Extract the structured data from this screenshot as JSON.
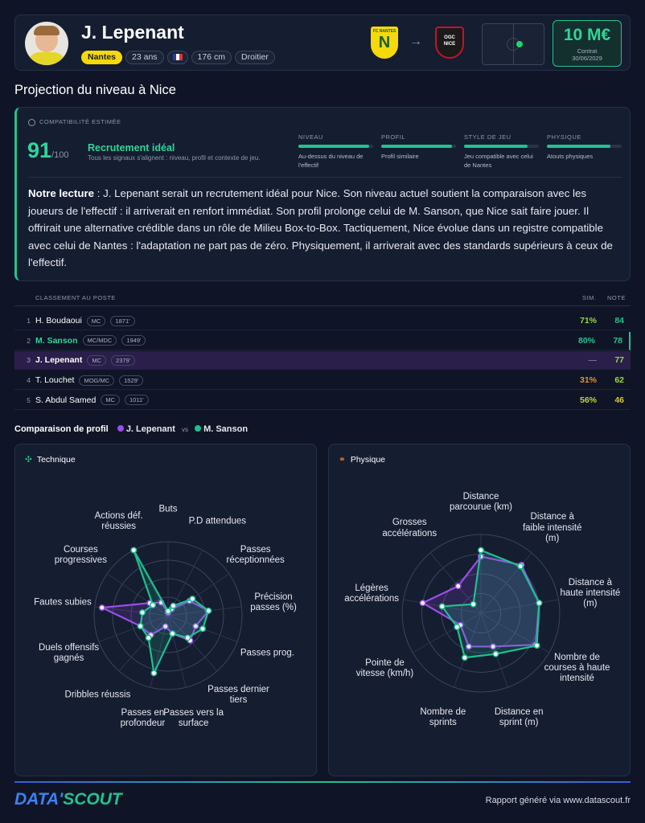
{
  "header": {
    "name": "J. Lepenant",
    "club": "Nantes",
    "age": "23 ans",
    "height": "176 cm",
    "foot": "Droitier",
    "from_logo": "FC NANTES",
    "to_logo": "OGC NICE",
    "value": "10 M€",
    "contract_label": "Contrat",
    "contract_date": "30/06/2029"
  },
  "section_title": "Projection du niveau à Nice",
  "compat": {
    "title": "COMPATIBILITÉ ESTIMÉE",
    "score": "91",
    "score_max": "/100",
    "verdict": "Recrutement idéal",
    "verdict_text": "Tous les signaux s'alignent : niveau, profil et contexte de jeu.",
    "bars": [
      {
        "label": "NIVEAU",
        "text": "Au-dessus du niveau de l'effectif",
        "value": 95
      },
      {
        "label": "PROFIL",
        "text": "Profil similaire",
        "value": 95
      },
      {
        "label": "STYLE DE JEU",
        "text": "Jeu compatible avec celui de Nantes",
        "value": 85
      },
      {
        "label": "PHYSIQUE",
        "text": "Atouts physiques",
        "value": 85
      }
    ],
    "reading_label": "Notre lecture",
    "reading": " : J. Lepenant serait un recrutement idéal pour Nice. Son niveau actuel soutient la comparaison avec les joueurs de l'effectif : il arriverait en renfort immédiat. Son profil prolonge celui de M. Sanson, que Nice sait faire jouer. Il offrirait une alternative crédible dans un rôle de Milieu Box-to-Box. Tactiquement, Nice évolue dans un registre compatible avec celui de Nantes : l'adaptation ne part pas de zéro. Physiquement, il arriverait avec des standards supérieurs à ceux de l'effectif."
  },
  "ranking": {
    "title": "CLASSEMENT AU POSTE",
    "sim_header": "SIM.",
    "note_header": "NOTE",
    "rows": [
      {
        "rank": "1",
        "name": "H. Boudaoui",
        "pos": "MC",
        "minutes": "1871'",
        "sim": "71%",
        "note": "84",
        "sim_color": "#9ad83a",
        "note_color": "#22c38e"
      },
      {
        "rank": "2",
        "name": "M. Sanson",
        "pos": "MC/MDC",
        "minutes": "1949'",
        "sim": "80%",
        "note": "78",
        "sim_color": "#22c38e",
        "note_color": "#22c38e"
      },
      {
        "rank": "3",
        "name": "J. Lepenant",
        "pos": "MC",
        "minutes": "2379'",
        "sim": "—",
        "note": "77",
        "sim_color": "#6b7488",
        "note_color": "#9ad83a"
      },
      {
        "rank": "4",
        "name": "T. Louchet",
        "pos": "MOG/MC",
        "minutes": "1529'",
        "sim": "31%",
        "note": "62",
        "sim_color": "#e0952a",
        "note_color": "#9ad83a"
      },
      {
        "rank": "5",
        "name": "S. Abdul Samed",
        "pos": "MC",
        "minutes": "1011'",
        "sim": "56%",
        "note": "46",
        "sim_color": "#c4d23a",
        "note_color": "#d4c93a"
      }
    ]
  },
  "comparison": {
    "title": "Comparaison de profil",
    "vs": "vs"
  },
  "footer": {
    "brand_a": "DATA'",
    "brand_b": "SCOUT",
    "note": "Rapport généré via www.datascout.fr"
  },
  "chart_data": [
    {
      "type": "radar",
      "title": "Technique",
      "categories": [
        "Buts",
        "P.D attendues",
        "Passes réceptionnées",
        "Précision passes (%)",
        "Passes prog.",
        "Passes dernier tiers",
        "Passes vers la surface",
        "Passes en profondeur",
        "Dribbles réussis",
        "Duels offensifs gagnés",
        "Fautes subies",
        "Courses progressives",
        "Actions déf. réussies"
      ],
      "series": [
        {
          "name": "J. Lepenant",
          "color": "#9b4dea",
          "values": [
            4,
            10,
            35,
            55,
            40,
            45,
            25,
            15,
            35,
            40,
            90,
            30,
            20
          ]
        },
        {
          "name": "M. Sanson",
          "color": "#1fbf8f",
          "values": [
            6,
            15,
            40,
            55,
            50,
            40,
            25,
            80,
            40,
            40,
            35,
            25,
            100
          ]
        }
      ],
      "ylim": [
        0,
        100
      ],
      "yticks": [
        25,
        50,
        75,
        100
      ]
    },
    {
      "type": "radar",
      "title": "Physique",
      "categories": [
        "Distance parcourue (km)",
        "Distance à faible intensité (m)",
        "Distance à haute intensité (m)",
        "Nombre de courses à haute intensité",
        "Distance en sprint (m)",
        "Nombre de sprints",
        "Pointe de vitesse (km/h)",
        "Légères accélérations",
        "Grosses accélérations"
      ],
      "series": [
        {
          "name": "J. Lepenant",
          "color": "#9b4dea",
          "values": [
            72,
            80,
            75,
            80,
            45,
            45,
            30,
            75,
            45
          ]
        },
        {
          "name": "M. Sanson",
          "color": "#1fbf8f",
          "values": [
            80,
            78,
            75,
            82,
            55,
            60,
            35,
            50,
            15
          ]
        }
      ],
      "ylim": [
        0,
        100
      ],
      "yticks": [
        25,
        50,
        75,
        100
      ]
    }
  ]
}
